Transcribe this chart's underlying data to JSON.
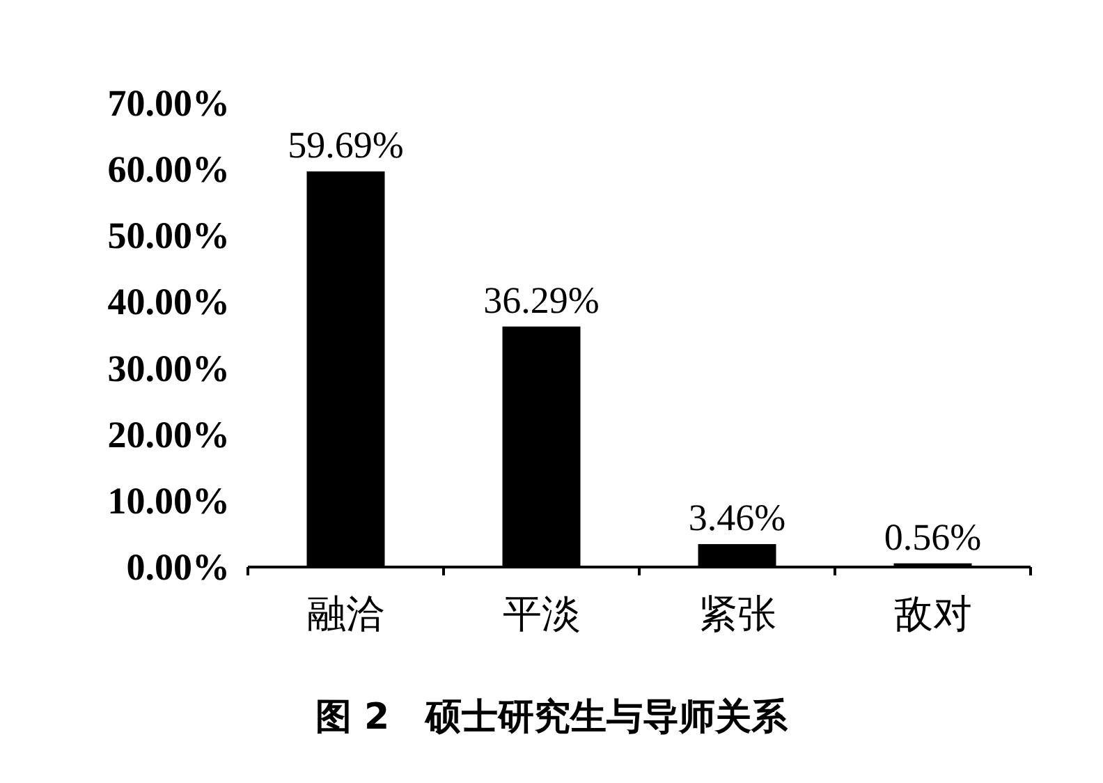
{
  "chart_data": {
    "type": "bar",
    "title": "图 2　硕士研究生与导师关系",
    "categories": [
      "融洽",
      "平淡",
      "紧张",
      "敌对"
    ],
    "values": [
      59.69,
      36.29,
      3.46,
      0.56
    ],
    "value_labels": [
      "59.69%",
      "36.29%",
      "3.46%",
      "0.56%"
    ],
    "color": "#000000",
    "ylim": [
      0,
      70
    ],
    "yticks": [
      {
        "value": 0,
        "label": "0.00%"
      },
      {
        "value": 10,
        "label": "10.00%"
      },
      {
        "value": 20,
        "label": "20.00%"
      },
      {
        "value": 30,
        "label": "30.00%"
      },
      {
        "value": 40,
        "label": "40.00%"
      },
      {
        "value": 50,
        "label": "50.00%"
      },
      {
        "value": 60,
        "label": "60.00%"
      },
      {
        "value": 70,
        "label": "70.00%"
      }
    ]
  }
}
